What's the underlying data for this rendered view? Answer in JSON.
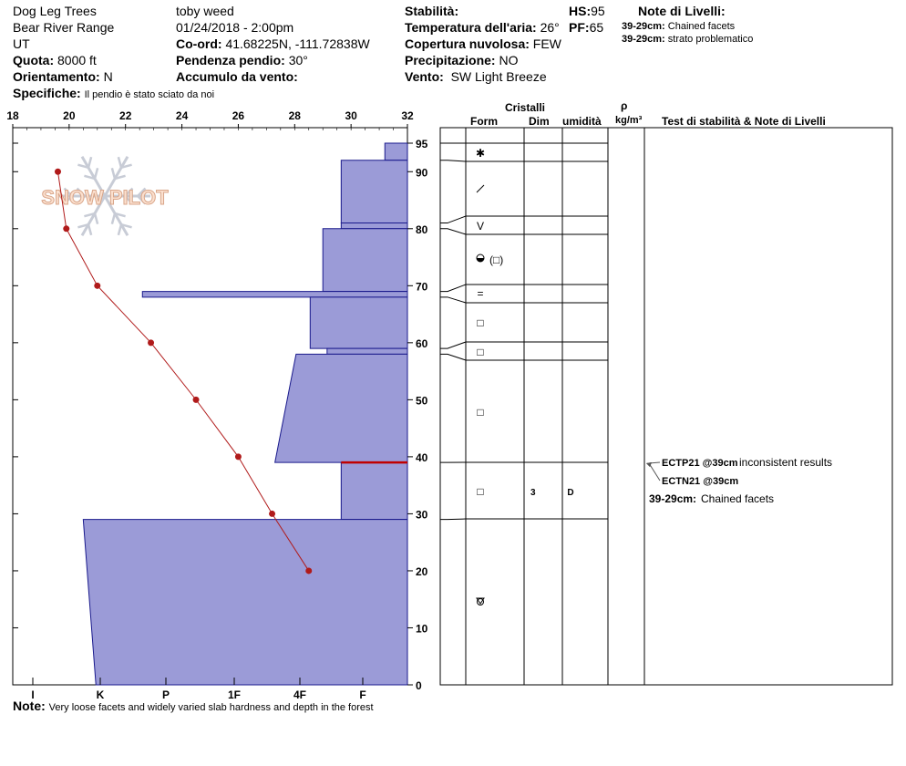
{
  "header": {
    "location": "Dog Leg Trees",
    "range": "Bear River Range",
    "state": "UT",
    "quota_label": "Quota:",
    "quota_value": "8000 ft",
    "orient_label": "Orientamento:",
    "orient_value": "N",
    "specifiche_label": "Specifiche:",
    "specifiche_value": "Il pendio è stato sciato da noi",
    "observer": "toby weed",
    "datetime": "01/24/2018 - 2:00pm",
    "coord_label": "Co-ord:",
    "coord_value": "41.68225N, -111.72838W",
    "pendenza_label": "Pendenza pendio:",
    "pendenza_value": "30°",
    "accumulo_label": "Accumulo da vento:",
    "stabilita_label": "Stabilità:",
    "hs_label": "HS:",
    "hs_value": "95",
    "temp_label": "Temperatura dell'aria:",
    "temp_value": "26°",
    "pf_label": "PF:",
    "pf_value": "65",
    "copertura_label": "Copertura nuvolosa:",
    "copertura_value": "FEW",
    "precip_label": "Precipitazione:",
    "precip_value": "NO",
    "vento_label": "Vento:",
    "vento_value": "SW Light Breeze",
    "note_livelli_title": "Note di Livelli:",
    "note_livelli_1_label": "39-29cm:",
    "note_livelli_1_value": "Chained facets",
    "note_livelli_2_label": "39-29cm:",
    "note_livelli_2_value": "strato problematico"
  },
  "column_headers": {
    "cristalli": "Cristalli",
    "form": "Form",
    "dim": "Dim",
    "umidita": "umidità",
    "rho": "ρ",
    "density_unit": "kg/m³",
    "tests": "Test di stabilità & Note di Livelli"
  },
  "watermark": "SNOW PILOT",
  "footer": {
    "note_label": "Note:",
    "note_value": "Very loose facets and widely varied slab hardness and depth in the forest"
  },
  "colors": {
    "hardness_fill": "#9b9bd7",
    "hardness_stroke": "#1a1a8c",
    "temp_line": "#b01a1a",
    "critical_line": "#c00000"
  },
  "chart_data": {
    "type": "snow-profile",
    "temp_axis": {
      "min": 18,
      "max": 32,
      "ticks": [
        18,
        20,
        22,
        24,
        26,
        28,
        30,
        32
      ]
    },
    "height_axis": {
      "min": 0,
      "max": 95,
      "ticks": [
        0,
        10,
        20,
        30,
        40,
        50,
        60,
        70,
        80,
        90,
        95
      ]
    },
    "hardness_labels": [
      "I",
      "K",
      "P",
      "1F",
      "4F",
      "F"
    ],
    "temperature_profile": [
      {
        "height": 90,
        "temp": 19.6
      },
      {
        "height": 80,
        "temp": 19.9
      },
      {
        "height": 70,
        "temp": 21.0
      },
      {
        "height": 60,
        "temp": 22.9
      },
      {
        "height": 50,
        "temp": 24.5
      },
      {
        "height": 40,
        "temp": 26.0
      },
      {
        "height": 30,
        "temp": 27.2
      },
      {
        "height": 20,
        "temp": 28.5
      }
    ],
    "hardness_layers": [
      {
        "top": 95,
        "bottom": 92,
        "hard_top": 0.8,
        "hard_bottom": 0.8
      },
      {
        "top": 92,
        "bottom": 81,
        "hard_top": 2.35,
        "hard_bottom": 2.35
      },
      {
        "top": 81,
        "bottom": 80,
        "hard_top": 2.35,
        "hard_bottom": 2.35
      },
      {
        "top": 80,
        "bottom": 69,
        "hard_top": 3.0,
        "hard_bottom": 3.0
      },
      {
        "top": 69,
        "bottom": 68,
        "hard_top": 9.4,
        "hard_bottom": 9.4
      },
      {
        "top": 68,
        "bottom": 59,
        "hard_top": 3.45,
        "hard_bottom": 3.45
      },
      {
        "top": 59,
        "bottom": 58,
        "hard_top": 2.85,
        "hard_bottom": 2.85
      },
      {
        "top": 58,
        "bottom": 39,
        "hard_top": 3.95,
        "hard_bottom": 4.7
      },
      {
        "top": 39,
        "bottom": 29,
        "hard_top": 2.35,
        "hard_bottom": 2.35
      },
      {
        "top": 29,
        "bottom": 0,
        "hard_top": 11.5,
        "hard_bottom": 11.05
      }
    ],
    "critical_layer_height": 39,
    "layer_boundaries": [
      95,
      92,
      81,
      80,
      69,
      68,
      59,
      58,
      39,
      29
    ],
    "crystals": [
      {
        "height": 93.5,
        "form": "star"
      },
      {
        "height": 87,
        "form": "slash"
      },
      {
        "height": 80.5,
        "form": "v"
      },
      {
        "height": 74,
        "form": "round-square"
      },
      {
        "height": 68.5,
        "form": "equals"
      },
      {
        "height": 63.5,
        "form": "square"
      },
      {
        "height": 58.5,
        "form": "square"
      },
      {
        "height": 48.5,
        "form": "square"
      },
      {
        "height": 34,
        "form": "square",
        "dim": "3",
        "moisture": "D"
      },
      {
        "height": 14.5,
        "form": "depth-hoar"
      }
    ],
    "stability_tests": [
      {
        "code": "ECTP21 @39cm",
        "note": "inconsistent results"
      },
      {
        "code": "ECTN21 @39cm",
        "note": ""
      }
    ],
    "layer_note": {
      "label": "39-29cm:",
      "value": "Chained facets"
    }
  }
}
